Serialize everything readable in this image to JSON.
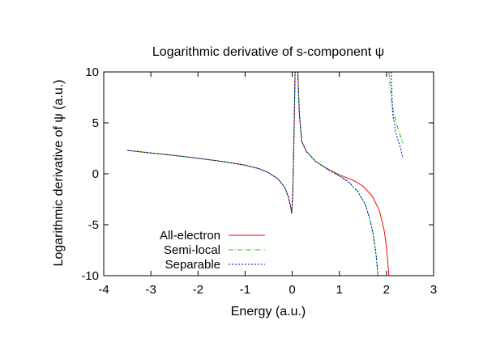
{
  "chart_data": {
    "type": "line",
    "title": "Logarithmic derivative of s-component ψ",
    "xlabel": "Energy (a.u.)",
    "ylabel": "Logarithmic derivative of ψ (a.u.)",
    "xlim": [
      -4,
      3
    ],
    "ylim": [
      -10,
      10
    ],
    "xticks": [
      "-4",
      "-3",
      "-2",
      "-1",
      "0",
      "1",
      "2",
      "3"
    ],
    "yticks": [
      "-10",
      "-5",
      "0",
      "5",
      "10"
    ],
    "grid": false,
    "legend_position": "bottom-left",
    "series": [
      {
        "name": "All-electron",
        "color": "#ff0000",
        "dash": "solid",
        "segments": [
          [
            [
              -3.5,
              2.3
            ],
            [
              -3.0,
              2.05
            ],
            [
              -2.5,
              1.8
            ],
            [
              -2.0,
              1.52
            ],
            [
              -1.5,
              1.22
            ],
            [
              -1.0,
              0.85
            ],
            [
              -0.7,
              0.5
            ],
            [
              -0.5,
              0.1
            ],
            [
              -0.3,
              -0.5
            ],
            [
              -0.15,
              -1.4
            ],
            [
              -0.08,
              -2.3
            ],
            [
              -0.03,
              -3.3
            ],
            [
              -0.01,
              -3.9
            ],
            [
              0.01,
              -2.0
            ],
            [
              0.03,
              2.0
            ],
            [
              0.05,
              7.0
            ],
            [
              0.06,
              10
            ]
          ],
          [
            [
              0.12,
              10
            ],
            [
              0.15,
              6.0
            ],
            [
              0.2,
              3.2
            ],
            [
              0.3,
              2.2
            ],
            [
              0.5,
              1.2
            ],
            [
              0.8,
              0.35
            ],
            [
              1.0,
              -0.1
            ],
            [
              1.3,
              -0.65
            ],
            [
              1.5,
              -1.2
            ],
            [
              1.7,
              -2.2
            ],
            [
              1.85,
              -3.6
            ],
            [
              1.95,
              -5.5
            ],
            [
              2.0,
              -7.2
            ],
            [
              2.05,
              -10
            ]
          ]
        ]
      },
      {
        "name": "Semi-local",
        "color": "#00cc00",
        "dash": "dashdot",
        "segments": [
          [
            [
              -3.5,
              2.3
            ],
            [
              -3.0,
              2.05
            ],
            [
              -2.5,
              1.8
            ],
            [
              -2.0,
              1.52
            ],
            [
              -1.5,
              1.22
            ],
            [
              -1.0,
              0.85
            ],
            [
              -0.7,
              0.5
            ],
            [
              -0.5,
              0.1
            ],
            [
              -0.3,
              -0.5
            ],
            [
              -0.15,
              -1.4
            ],
            [
              -0.08,
              -2.3
            ],
            [
              -0.03,
              -3.3
            ],
            [
              -0.01,
              -3.9
            ],
            [
              0.01,
              -2.0
            ],
            [
              0.03,
              2.0
            ],
            [
              0.05,
              7.0
            ],
            [
              0.06,
              10
            ]
          ],
          [
            [
              0.12,
              10
            ],
            [
              0.15,
              6.0
            ],
            [
              0.2,
              3.2
            ],
            [
              0.3,
              2.2
            ],
            [
              0.5,
              1.2
            ],
            [
              0.8,
              0.3
            ],
            [
              1.0,
              -0.2
            ],
            [
              1.2,
              -0.8
            ],
            [
              1.4,
              -1.8
            ],
            [
              1.55,
              -3.0
            ],
            [
              1.65,
              -4.5
            ],
            [
              1.72,
              -6.0
            ],
            [
              1.78,
              -8.0
            ],
            [
              1.82,
              -10
            ]
          ],
          [
            [
              2.05,
              10
            ],
            [
              2.1,
              7.5
            ],
            [
              2.15,
              6.0
            ],
            [
              2.25,
              4.3
            ],
            [
              2.35,
              3.0
            ]
          ]
        ]
      },
      {
        "name": "Separable",
        "color": "#0000cc",
        "dash": "dotted",
        "segments": [
          [
            [
              -3.5,
              2.3
            ],
            [
              -3.0,
              2.05
            ],
            [
              -2.5,
              1.8
            ],
            [
              -2.0,
              1.52
            ],
            [
              -1.5,
              1.22
            ],
            [
              -1.0,
              0.85
            ],
            [
              -0.7,
              0.5
            ],
            [
              -0.5,
              0.1
            ],
            [
              -0.3,
              -0.5
            ],
            [
              -0.15,
              -1.4
            ],
            [
              -0.08,
              -2.3
            ],
            [
              -0.03,
              -3.3
            ],
            [
              -0.01,
              -3.9
            ],
            [
              0.01,
              -2.0
            ],
            [
              0.03,
              2.0
            ],
            [
              0.05,
              7.0
            ],
            [
              0.06,
              10
            ]
          ],
          [
            [
              0.12,
              10
            ],
            [
              0.15,
              6.0
            ],
            [
              0.2,
              3.2
            ],
            [
              0.3,
              2.2
            ],
            [
              0.5,
              1.2
            ],
            [
              0.8,
              0.3
            ],
            [
              1.0,
              -0.2
            ],
            [
              1.2,
              -0.8
            ],
            [
              1.4,
              -1.8
            ],
            [
              1.55,
              -3.0
            ],
            [
              1.65,
              -4.5
            ],
            [
              1.72,
              -6.0
            ],
            [
              1.78,
              -8.0
            ],
            [
              1.82,
              -10
            ]
          ],
          [
            [
              2.1,
              10
            ],
            [
              2.13,
              6.0
            ],
            [
              2.2,
              4.0
            ],
            [
              2.3,
              2.5
            ],
            [
              2.35,
              1.5
            ]
          ]
        ]
      }
    ]
  }
}
